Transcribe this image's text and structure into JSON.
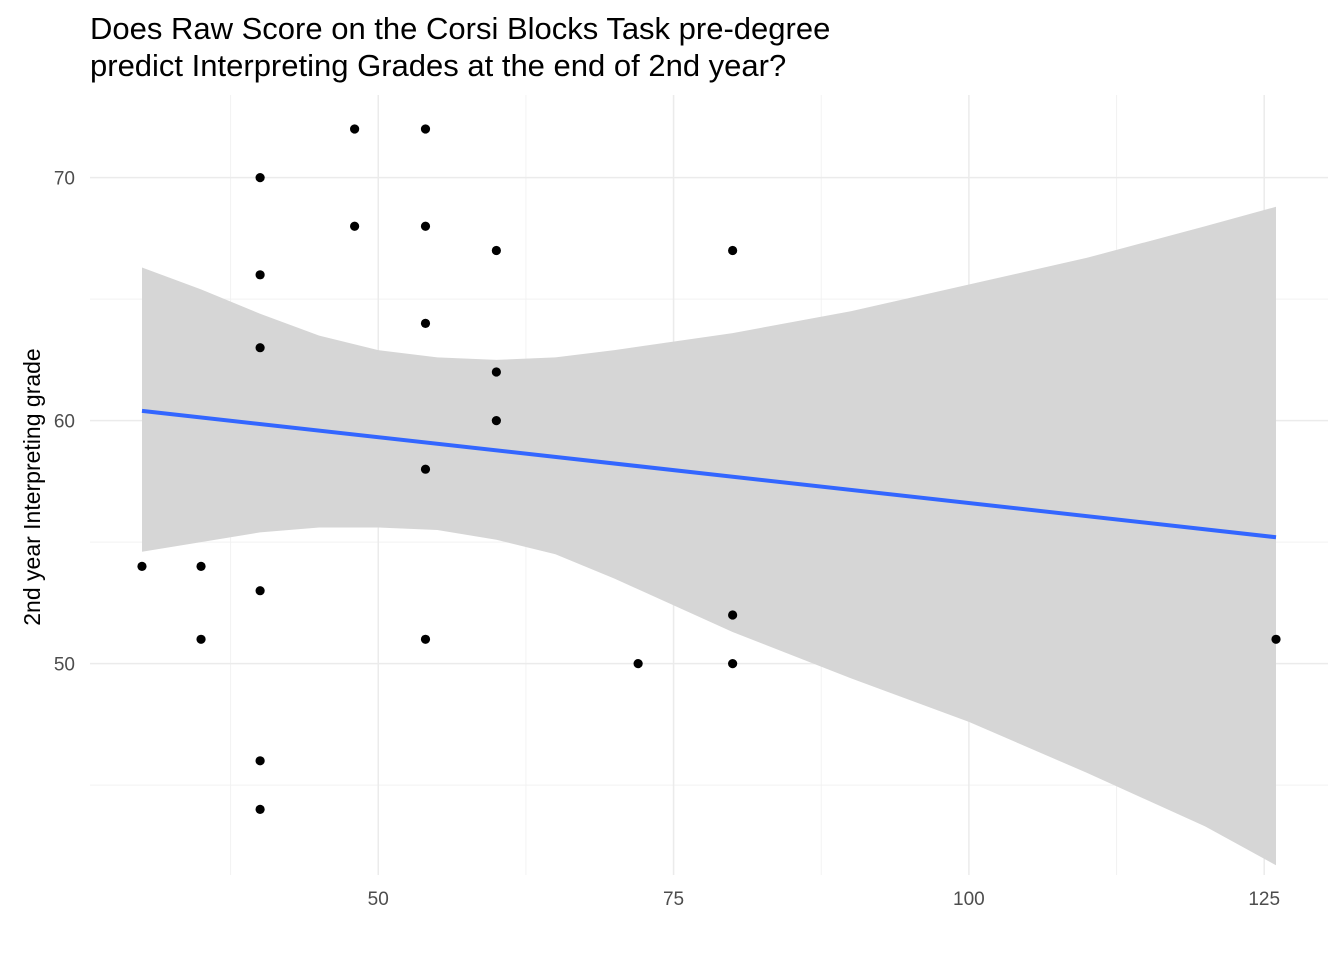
{
  "chart_data": {
    "type": "scatter",
    "title_lines": [
      "Does Raw Score on the Corsi Blocks Task pre-degree",
      "predict Interpreting Grades at the end of 2nd year?"
    ],
    "xlabel": "",
    "ylabel": "2nd year Interpreting grade",
    "xlim": [
      25.6,
      130.4
    ],
    "ylim": [
      41.3,
      73.4
    ],
    "x_ticks": [
      50,
      75,
      100,
      125
    ],
    "y_ticks": [
      50,
      60,
      70
    ],
    "grid": true,
    "points": [
      {
        "x": 30,
        "y": 54
      },
      {
        "x": 35,
        "y": 54
      },
      {
        "x": 35,
        "y": 51
      },
      {
        "x": 40,
        "y": 70
      },
      {
        "x": 40,
        "y": 66
      },
      {
        "x": 40,
        "y": 63
      },
      {
        "x": 40,
        "y": 53
      },
      {
        "x": 40,
        "y": 46
      },
      {
        "x": 40,
        "y": 44
      },
      {
        "x": 48,
        "y": 72
      },
      {
        "x": 48,
        "y": 68
      },
      {
        "x": 54,
        "y": 72
      },
      {
        "x": 54,
        "y": 68
      },
      {
        "x": 54,
        "y": 64
      },
      {
        "x": 54,
        "y": 58
      },
      {
        "x": 54,
        "y": 51
      },
      {
        "x": 60,
        "y": 67
      },
      {
        "x": 60,
        "y": 62
      },
      {
        "x": 60,
        "y": 60
      },
      {
        "x": 72,
        "y": 50
      },
      {
        "x": 80,
        "y": 67
      },
      {
        "x": 80,
        "y": 52
      },
      {
        "x": 80,
        "y": 50
      },
      {
        "x": 126,
        "y": 51
      }
    ],
    "trend_line": {
      "method": "linear",
      "x": [
        30,
        126
      ],
      "y": [
        60.4,
        55.2
      ],
      "color": "#3366ff"
    },
    "confidence_band": {
      "color": "#d6d6d6",
      "x": [
        30,
        35,
        40,
        45,
        50,
        55,
        60,
        65,
        70,
        80,
        90,
        100,
        110,
        120,
        126
      ],
      "lower": [
        54.6,
        55.0,
        55.4,
        55.6,
        55.6,
        55.5,
        55.1,
        54.5,
        53.5,
        51.3,
        49.4,
        47.6,
        45.5,
        43.3,
        41.7
      ],
      "upper": [
        66.3,
        65.4,
        64.4,
        63.5,
        62.9,
        62.6,
        62.5,
        62.6,
        62.9,
        63.6,
        64.5,
        65.6,
        66.7,
        68.0,
        68.8
      ]
    },
    "point_color": "#000000"
  }
}
